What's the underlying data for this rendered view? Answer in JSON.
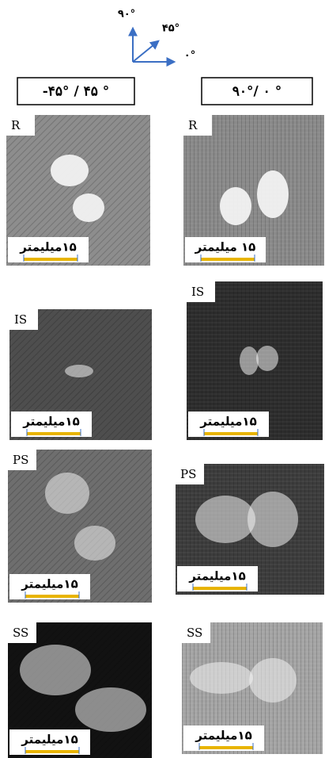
{
  "orientation": {
    "labels": [
      "۹۰°",
      "۴۵°",
      "۰°"
    ]
  },
  "columns": [
    {
      "header": "-۴۵° / ۴۵ °",
      "panels": [
        {
          "label": "R",
          "scale": "۱۵میلیمتر"
        },
        {
          "label": "IS",
          "scale": "۱۵میلیمتر"
        },
        {
          "label": "PS",
          "scale": "۱۵میلیمتر"
        },
        {
          "label": "SS",
          "scale": "۱۵میلیمتر"
        }
      ]
    },
    {
      "header": "۹۰°/ ۰ °",
      "panels": [
        {
          "label": "R",
          "scale": "۱۵ میلیمتر"
        },
        {
          "label": "IS",
          "scale": "۱۵میلیمتر"
        },
        {
          "label": "PS",
          "scale": "۱۵میلیمتر"
        },
        {
          "label": "SS",
          "scale": "۱۵میلیمتر"
        }
      ]
    }
  ]
}
